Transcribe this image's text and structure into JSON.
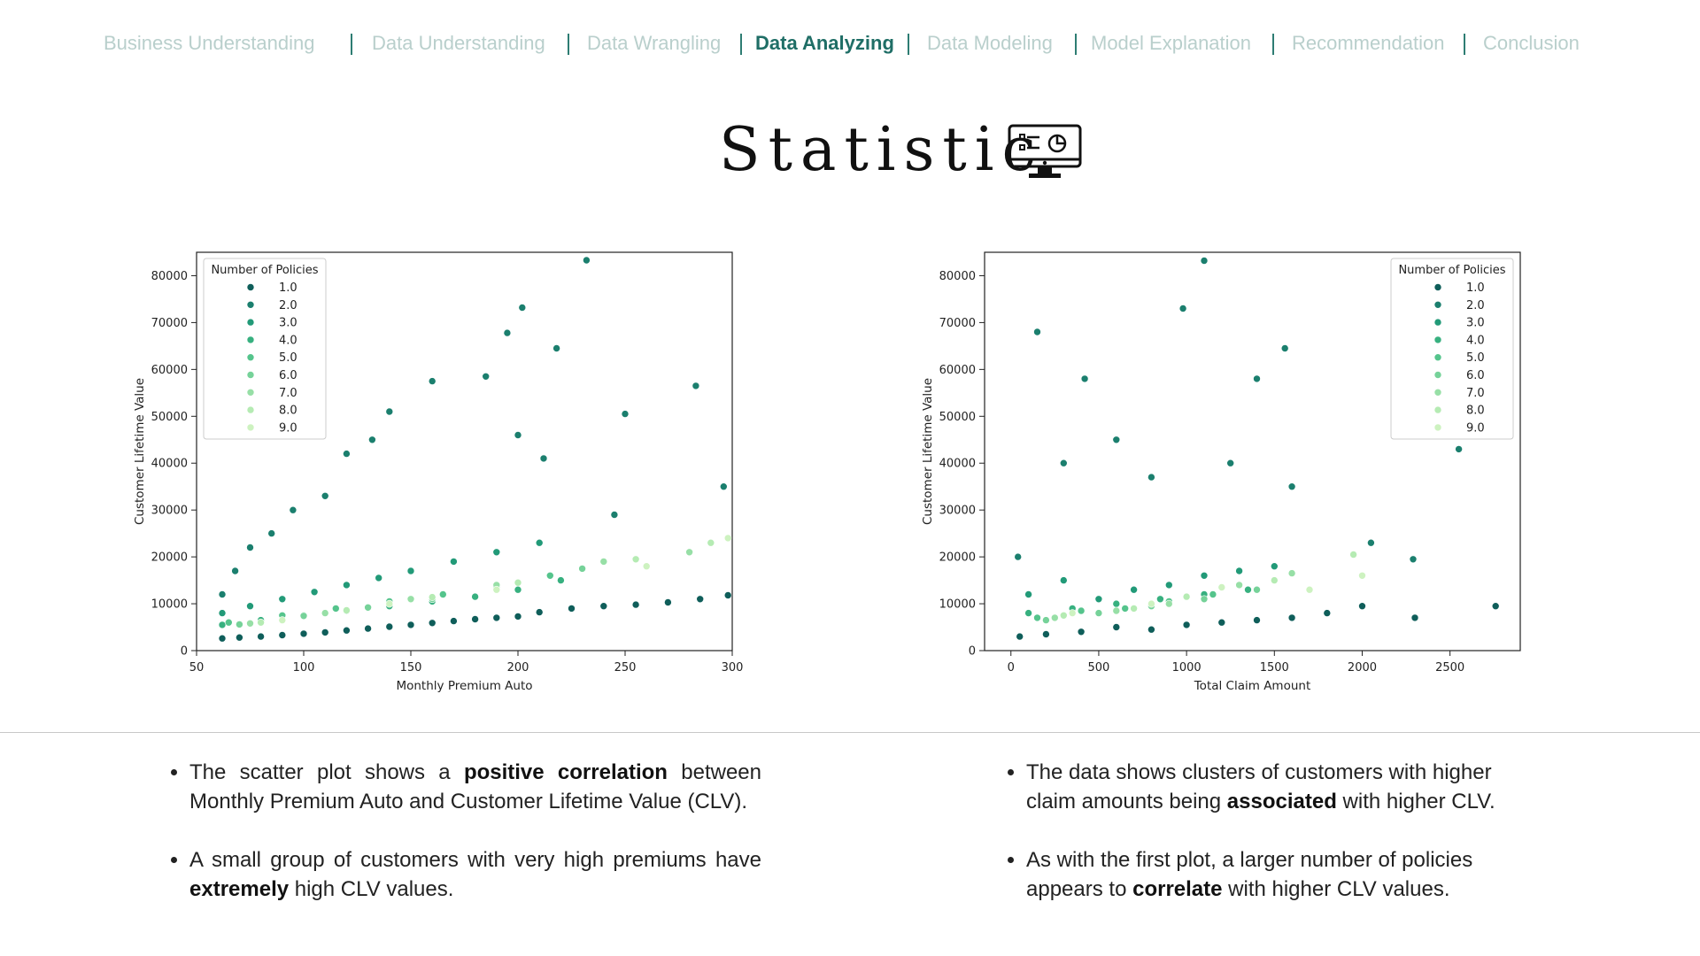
{
  "nav": {
    "items": [
      {
        "label": "Business Understanding",
        "active": false
      },
      {
        "label": "Data Understanding",
        "active": false
      },
      {
        "label": "Data Wrangling",
        "active": false
      },
      {
        "label": "Data Analyzing",
        "active": true
      },
      {
        "label": "Data Modeling",
        "active": false
      },
      {
        "label": "Model Explanation",
        "active": false
      },
      {
        "label": "Recommendation",
        "active": false
      },
      {
        "label": "Conclusion",
        "active": false
      }
    ]
  },
  "page": {
    "title": "Statistic",
    "title_icon": "monitor-dashboard-icon"
  },
  "colors": {
    "accent": "#1f6e66",
    "nav_inactive": "#b9cfcc",
    "policy_palette": [
      "#0f5e5a",
      "#1b7f6e",
      "#229a78",
      "#37b07f",
      "#55c48c",
      "#76d299",
      "#97dfa6",
      "#b5ebb3",
      "#cdf2c0"
    ]
  },
  "chart_data": [
    {
      "type": "scatter",
      "xlabel": "Monthly Premium Auto",
      "ylabel": "Customer Lifetime Value",
      "xlim": [
        50,
        300
      ],
      "ylim": [
        0,
        85000
      ],
      "xticks": [
        50,
        100,
        150,
        200,
        250,
        300
      ],
      "yticks": [
        0,
        10000,
        20000,
        30000,
        40000,
        50000,
        60000,
        70000,
        80000
      ],
      "legend": {
        "title": "Number of Policies",
        "position": "top-left",
        "entries": [
          "1.0",
          "2.0",
          "3.0",
          "4.0",
          "5.0",
          "6.0",
          "7.0",
          "8.0",
          "9.0"
        ]
      },
      "series": [
        {
          "name": "1.0",
          "points": [
            [
              62,
              2600
            ],
            [
              70,
              2800
            ],
            [
              80,
              3000
            ],
            [
              90,
              3300
            ],
            [
              100,
              3600
            ],
            [
              110,
              3900
            ],
            [
              120,
              4300
            ],
            [
              130,
              4700
            ],
            [
              140,
              5100
            ],
            [
              150,
              5500
            ],
            [
              160,
              5900
            ],
            [
              170,
              6300
            ],
            [
              180,
              6700
            ],
            [
              190,
              7000
            ],
            [
              200,
              7300
            ],
            [
              210,
              8200
            ],
            [
              225,
              9000
            ],
            [
              240,
              9500
            ],
            [
              255,
              9800
            ],
            [
              270,
              10300
            ],
            [
              285,
              11000
            ],
            [
              298,
              11800
            ]
          ]
        },
        {
          "name": "2.0",
          "points": [
            [
              62,
              12000
            ],
            [
              68,
              17000
            ],
            [
              75,
              22000
            ],
            [
              85,
              25000
            ],
            [
              95,
              30000
            ],
            [
              110,
              33000
            ],
            [
              120,
              42000
            ],
            [
              132,
              45000
            ],
            [
              140,
              51000
            ],
            [
              160,
              57500
            ],
            [
              185,
              58500
            ],
            [
              195,
              67800
            ],
            [
              202,
              73200
            ],
            [
              218,
              64500
            ],
            [
              232,
              83300
            ],
            [
              250,
              50500
            ],
            [
              283,
              56500
            ],
            [
              296,
              35000
            ],
            [
              200,
              46000
            ],
            [
              212,
              41000
            ],
            [
              245,
              29000
            ]
          ]
        },
        {
          "name": "3.0",
          "points": [
            [
              62,
              8000
            ],
            [
              75,
              9500
            ],
            [
              90,
              11000
            ],
            [
              105,
              12500
            ],
            [
              120,
              14000
            ],
            [
              135,
              15500
            ],
            [
              150,
              17000
            ],
            [
              170,
              19000
            ],
            [
              190,
              21000
            ],
            [
              210,
              23000
            ]
          ]
        },
        {
          "name": "4.0",
          "points": [
            [
              62,
              5500
            ],
            [
              80,
              6500
            ],
            [
              100,
              7500
            ],
            [
              120,
              8500
            ],
            [
              140,
              9500
            ],
            [
              160,
              10500
            ],
            [
              180,
              11500
            ],
            [
              200,
              13000
            ],
            [
              220,
              15000
            ]
          ]
        },
        {
          "name": "5.0",
          "points": [
            [
              65,
              6000
            ],
            [
              90,
              7500
            ],
            [
              115,
              9000
            ],
            [
              140,
              10500
            ],
            [
              165,
              12000
            ],
            [
              190,
              13500
            ],
            [
              215,
              16000
            ]
          ]
        },
        {
          "name": "6.0",
          "points": [
            [
              70,
              5600
            ],
            [
              100,
              7400
            ],
            [
              130,
              9200
            ],
            [
              160,
              11000
            ],
            [
              190,
              13500
            ],
            [
              230,
              17500
            ]
          ]
        },
        {
          "name": "7.0",
          "points": [
            [
              75,
              5800
            ],
            [
              110,
              8000
            ],
            [
              150,
              11000
            ],
            [
              190,
              14000
            ],
            [
              240,
              19000
            ],
            [
              280,
              21000
            ]
          ]
        },
        {
          "name": "8.0",
          "points": [
            [
              80,
              6000
            ],
            [
              120,
              8600
            ],
            [
              160,
              11400
            ],
            [
              200,
              14500
            ],
            [
              255,
              19500
            ],
            [
              290,
              23000
            ]
          ]
        },
        {
          "name": "9.0",
          "points": [
            [
              90,
              6500
            ],
            [
              140,
              10000
            ],
            [
              190,
              13000
            ],
            [
              260,
              18000
            ],
            [
              298,
              24000
            ]
          ]
        }
      ]
    },
    {
      "type": "scatter",
      "xlabel": "Total Claim Amount",
      "ylabel": "Customer Lifetime Value",
      "xlim": [
        -150,
        2900
      ],
      "ylim": [
        0,
        85000
      ],
      "xticks": [
        0,
        500,
        1000,
        1500,
        2000,
        2500
      ],
      "yticks": [
        0,
        10000,
        20000,
        30000,
        40000,
        50000,
        60000,
        70000,
        80000
      ],
      "legend": {
        "title": "Number of Policies",
        "position": "top-right",
        "entries": [
          "1.0",
          "2.0",
          "3.0",
          "4.0",
          "5.0",
          "6.0",
          "7.0",
          "8.0",
          "9.0"
        ]
      },
      "series": [
        {
          "name": "1.0",
          "points": [
            [
              50,
              3000
            ],
            [
              200,
              3500
            ],
            [
              400,
              4000
            ],
            [
              600,
              5000
            ],
            [
              800,
              4500
            ],
            [
              1000,
              5500
            ],
            [
              1200,
              6000
            ],
            [
              1400,
              6500
            ],
            [
              1600,
              7000
            ],
            [
              1800,
              8000
            ],
            [
              2000,
              9500
            ],
            [
              2300,
              7000
            ],
            [
              2760,
              9500
            ]
          ]
        },
        {
          "name": "2.0",
          "points": [
            [
              40,
              20000
            ],
            [
              150,
              68000
            ],
            [
              300,
              40000
            ],
            [
              420,
              58000
            ],
            [
              600,
              45000
            ],
            [
              800,
              37000
            ],
            [
              980,
              73000
            ],
            [
              1100,
              83200
            ],
            [
              1250,
              40000
            ],
            [
              1400,
              58000
            ],
            [
              1560,
              64500
            ],
            [
              1600,
              35000
            ],
            [
              2550,
              43000
            ],
            [
              2050,
              23000
            ],
            [
              2290,
              19500
            ]
          ]
        },
        {
          "name": "3.0",
          "points": [
            [
              100,
              12000
            ],
            [
              300,
              15000
            ],
            [
              500,
              11000
            ],
            [
              700,
              13000
            ],
            [
              900,
              14000
            ],
            [
              1100,
              16000
            ],
            [
              1300,
              17000
            ],
            [
              1500,
              18000
            ]
          ]
        },
        {
          "name": "4.0",
          "points": [
            [
              100,
              8000
            ],
            [
              350,
              9000
            ],
            [
              600,
              10000
            ],
            [
              850,
              11000
            ],
            [
              1100,
              12000
            ],
            [
              1350,
              13000
            ]
          ]
        },
        {
          "name": "5.0",
          "points": [
            [
              150,
              7000
            ],
            [
              400,
              8500
            ],
            [
              650,
              9000
            ],
            [
              900,
              10500
            ],
            [
              1150,
              12000
            ]
          ]
        },
        {
          "name": "6.0",
          "points": [
            [
              200,
              6500
            ],
            [
              500,
              8000
            ],
            [
              800,
              9500
            ],
            [
              1100,
              11000
            ],
            [
              1400,
              13000
            ]
          ]
        },
        {
          "name": "7.0",
          "points": [
            [
              250,
              7000
            ],
            [
              600,
              8500
            ],
            [
              900,
              10000
            ],
            [
              1300,
              14000
            ],
            [
              1600,
              16500
            ]
          ]
        },
        {
          "name": "8.0",
          "points": [
            [
              300,
              7500
            ],
            [
              700,
              9000
            ],
            [
              1000,
              11500
            ],
            [
              1500,
              15000
            ],
            [
              1950,
              20500
            ]
          ]
        },
        {
          "name": "9.0",
          "points": [
            [
              350,
              8000
            ],
            [
              800,
              10000
            ],
            [
              1200,
              13500
            ],
            [
              1700,
              13000
            ],
            [
              2000,
              16000
            ]
          ]
        }
      ]
    }
  ],
  "bullets": {
    "left": [
      {
        "parts": [
          {
            "t": "The scatter plot shows a "
          },
          {
            "t": "positive correlation",
            "b": true
          },
          {
            "t": " between Monthly Premium Auto and Customer Lifetime Value (CLV)."
          }
        ]
      },
      {
        "parts": [
          {
            "t": "A small group of customers with very high premiums have "
          },
          {
            "t": "extremely",
            "b": true
          },
          {
            "t": " high CLV values."
          }
        ]
      }
    ],
    "right": [
      {
        "parts": [
          {
            "t": "The data shows clusters of customers with higher claim amounts being "
          },
          {
            "t": "associated",
            "b": true
          },
          {
            "t": " with higher CLV."
          }
        ]
      },
      {
        "parts": [
          {
            "t": "As with the first plot, a larger number of policies appears to "
          },
          {
            "t": "correlate",
            "b": true
          },
          {
            "t": " with higher CLV values."
          }
        ]
      }
    ]
  }
}
